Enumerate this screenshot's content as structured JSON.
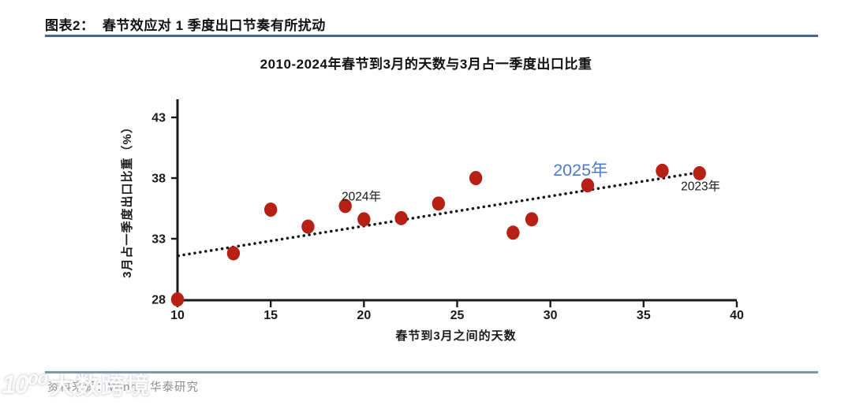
{
  "figure": {
    "header": "图表2：  春节效应对 1 季度出口节奏有所扰动",
    "source_note": "资料来源：Wind，华泰研究",
    "watermark_logo": "10⁰⁰",
    "watermark_text": "大数跨境"
  },
  "colors": {
    "header_rule": "#47688e",
    "footer_rule": "#7e95ad",
    "source_text": "#8c8c8c",
    "axis": "#1a1a1a",
    "point_red": "#b72015",
    "annotation_blue": "#4e79cd"
  },
  "chart_data": {
    "type": "scatter",
    "title": "2010-2024年春节到3月的天数与3月占一季度出口比重",
    "xlabel": "春节到3月之间的天数",
    "ylabel": "3月占一季度出口比重（%）",
    "xlim": [
      10,
      40
    ],
    "ylim": [
      28,
      43
    ],
    "xticks": [
      10,
      15,
      20,
      25,
      30,
      35,
      40
    ],
    "yticks": [
      28,
      33,
      38,
      43
    ],
    "grid": false,
    "legend": "none",
    "point_color": "#b72015",
    "points": [
      {
        "x": 10,
        "y": 28.0
      },
      {
        "x": 13,
        "y": 31.8
      },
      {
        "x": 15,
        "y": 35.4
      },
      {
        "x": 17,
        "y": 34.0
      },
      {
        "x": 19,
        "y": 35.7
      },
      {
        "x": 20,
        "y": 34.6
      },
      {
        "x": 22,
        "y": 34.7
      },
      {
        "x": 24,
        "y": 35.9
      },
      {
        "x": 26,
        "y": 38.0
      },
      {
        "x": 28,
        "y": 33.5
      },
      {
        "x": 29,
        "y": 34.6
      },
      {
        "x": 32,
        "y": 37.4
      },
      {
        "x": 36,
        "y": 38.6
      },
      {
        "x": 38,
        "y": 38.4
      }
    ],
    "trendline": {
      "style": "dotted",
      "x1": 10.05,
      "y1": 31.6,
      "x2": 37.9,
      "y2": 38.45,
      "color": "#151515"
    },
    "annotations": [
      {
        "text": "2024年",
        "x": 18.8,
        "y": 36.15,
        "color": "#1a1a1a",
        "size": 15.5,
        "weight": "normal"
      },
      {
        "text": "2025年",
        "x": 30.15,
        "y": 38.2,
        "color": "#4e79cd",
        "size": 21.5,
        "weight": "normal"
      },
      {
        "text": "2023年",
        "x": 37.0,
        "y": 37.0,
        "color": "#1a1a1a",
        "size": 15.5,
        "weight": "normal"
      }
    ]
  }
}
